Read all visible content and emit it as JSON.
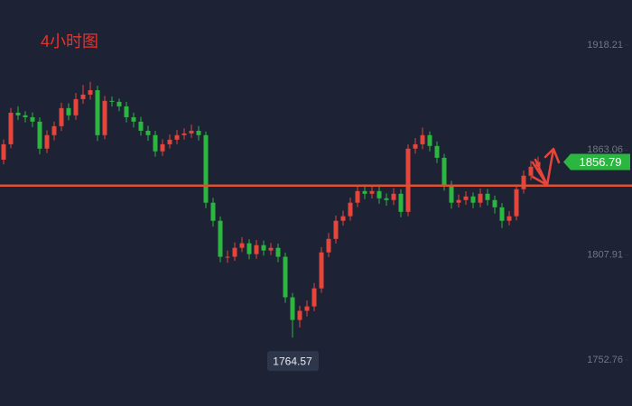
{
  "chart_data": {
    "type": "candlestick",
    "title": "4小时图",
    "up_color": "#e5453a",
    "down_color": "#2bb640",
    "open": [
      1858.0,
      1866.1,
      1882.7,
      1881.3,
      1880.3,
      1878.0,
      1863.8,
      1870.9,
      1875.6,
      1885.1,
      1881.3,
      1889.8,
      1892.2,
      1894.5,
      1870.9,
      1888.9,
      1888.4,
      1886.0,
      1880.3,
      1878.0,
      1873.2,
      1870.9,
      1862.4,
      1866.1,
      1868.5,
      1870.9,
      1871.8,
      1873.2,
      1870.9,
      1835.4,
      1825.9,
      1807.0,
      1807.0,
      1811.7,
      1814.1,
      1808.4,
      1813.1,
      1810.3,
      1811.7,
      1807.0,
      1785.7,
      1773.8,
      1778.6,
      1780.9,
      1790.4,
      1809.3,
      1816.4,
      1825.9,
      1828.3,
      1835.4,
      1841.5,
      1840.1,
      1841.5,
      1837.7,
      1836.8,
      1840.1,
      1830.6,
      1863.8,
      1866.1,
      1870.9,
      1865.2,
      1859.0,
      1844.8,
      1835.4,
      1836.8,
      1838.7,
      1835.4,
      1840.1,
      1836.8,
      1833.0,
      1825.9,
      1828.3,
      1842.5,
      1849.6,
      1854.3
    ],
    "high": [
      1868.6,
      1885.2,
      1886.0,
      1883.5,
      1882.9,
      1880.2,
      1873.4,
      1878.0,
      1887.9,
      1887.6,
      1893.0,
      1897.3,
      1898.9,
      1896.8,
      1891.5,
      1891.2,
      1890.1,
      1888.4,
      1882.7,
      1880.5,
      1875.8,
      1873.1,
      1868.7,
      1871.2,
      1873.6,
      1874.5,
      1876.4,
      1875.7,
      1872.8,
      1837.9,
      1828.2,
      1810.3,
      1814.6,
      1817.3,
      1816.2,
      1815.8,
      1815.5,
      1814.2,
      1813.9,
      1809.1,
      1788.0,
      1781.3,
      1784.0,
      1793.2,
      1812.0,
      1819.5,
      1828.6,
      1831.2,
      1838.1,
      1844.8,
      1843.9,
      1844.2,
      1843.8,
      1840.3,
      1843.0,
      1842.5,
      1866.0,
      1869.4,
      1874.8,
      1872.9,
      1867.6,
      1861.1,
      1846.9,
      1839.7,
      1841.4,
      1840.8,
      1842.9,
      1842.6,
      1839.1,
      1835.2,
      1831.0,
      1845.0,
      1852.3,
      1857.4,
      1859.6
    ],
    "low": [
      1855.5,
      1864.0,
      1878.8,
      1877.6,
      1875.1,
      1860.9,
      1861.5,
      1868.2,
      1873.1,
      1878.7,
      1879.0,
      1887.4,
      1889.6,
      1867.8,
      1868.7,
      1885.9,
      1883.4,
      1877.6,
      1874.9,
      1870.6,
      1867.9,
      1859.6,
      1860.0,
      1863.9,
      1866.2,
      1868.6,
      1869.5,
      1868.1,
      1832.6,
      1822.8,
      1804.1,
      1803.8,
      1804.9,
      1809.5,
      1805.7,
      1806.0,
      1807.6,
      1807.9,
      1804.2,
      1782.8,
      1764.57,
      1769.9,
      1775.7,
      1778.4,
      1788.1,
      1806.8,
      1814.0,
      1823.4,
      1826.0,
      1833.1,
      1837.3,
      1837.6,
      1834.9,
      1833.9,
      1834.2,
      1827.8,
      1828.3,
      1861.2,
      1863.6,
      1862.4,
      1856.3,
      1841.7,
      1832.2,
      1832.9,
      1834.3,
      1832.5,
      1833.0,
      1834.0,
      1829.7,
      1822.1,
      1823.5,
      1826.1,
      1840.2,
      1847.3,
      1852.0
    ],
    "close": [
      1866.1,
      1882.7,
      1881.3,
      1880.3,
      1878.0,
      1863.8,
      1870.9,
      1875.6,
      1885.1,
      1881.3,
      1889.8,
      1892.2,
      1894.5,
      1870.9,
      1888.9,
      1888.4,
      1886.0,
      1880.3,
      1878.0,
      1873.2,
      1870.9,
      1862.4,
      1866.1,
      1868.5,
      1870.9,
      1871.8,
      1873.2,
      1870.9,
      1835.4,
      1825.9,
      1807.0,
      1807.0,
      1811.7,
      1814.1,
      1808.4,
      1813.1,
      1810.3,
      1811.7,
      1807.0,
      1785.7,
      1773.8,
      1778.6,
      1780.9,
      1790.4,
      1809.3,
      1816.4,
      1825.9,
      1828.3,
      1835.4,
      1841.5,
      1840.1,
      1841.5,
      1837.7,
      1836.8,
      1840.1,
      1830.6,
      1863.8,
      1866.1,
      1870.9,
      1865.2,
      1859.0,
      1844.8,
      1835.4,
      1836.8,
      1838.7,
      1835.4,
      1840.1,
      1836.8,
      1833.0,
      1825.9,
      1828.3,
      1842.5,
      1849.6,
      1854.3,
      1856.79
    ],
    "ylim": [
      1728.6,
      1941.9
    ],
    "yticks": [
      1918.21,
      1863.06,
      1807.91,
      1752.76
    ],
    "level_line": 1844.36,
    "level_color": "#e0502e",
    "last_price": 1856.79,
    "low_marker": 1764.57
  }
}
